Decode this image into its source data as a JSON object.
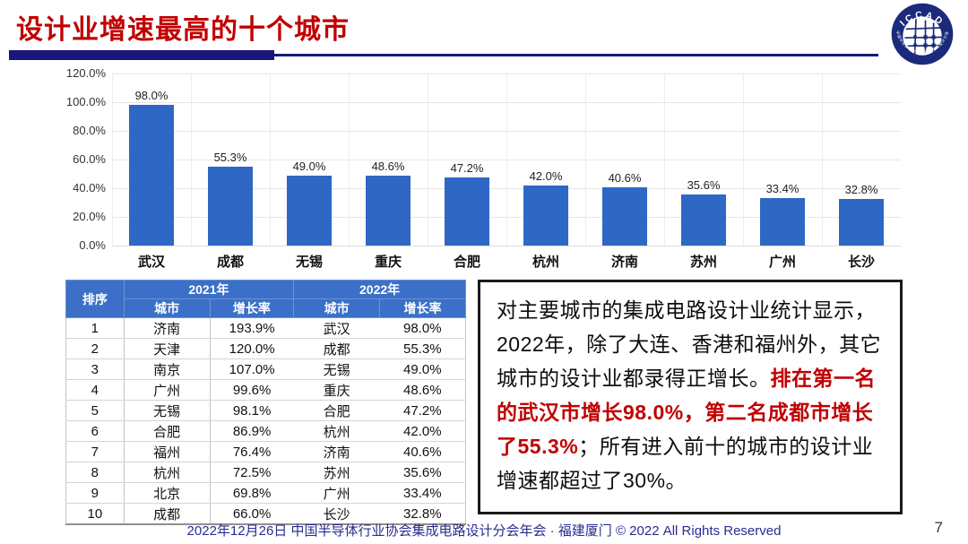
{
  "colors": {
    "title_red": "#c00000",
    "rule_navy": "#181878",
    "bar_blue": "#2f67c5",
    "table_header_blue": "#3c70c8",
    "emphasis_red": "#c00000",
    "footer_navy": "#2a2a92"
  },
  "header": {
    "title": "设计业增速最高的十个城市",
    "logo": {
      "top_text": "ICCAD",
      "ring_text": "中国半导体行业协会集成电路设计分会"
    }
  },
  "chart_data": {
    "type": "bar",
    "title": "",
    "xlabel": "",
    "ylabel": "",
    "categories": [
      "武汉",
      "成都",
      "无锡",
      "重庆",
      "合肥",
      "杭州",
      "济南",
      "苏州",
      "广州",
      "长沙"
    ],
    "values": [
      98.0,
      55.3,
      49.0,
      48.6,
      47.2,
      42.0,
      40.6,
      35.6,
      33.4,
      32.8
    ],
    "value_labels": [
      "98.0%",
      "55.3%",
      "49.0%",
      "48.6%",
      "47.2%",
      "42.0%",
      "40.6%",
      "35.6%",
      "33.4%",
      "32.8%"
    ],
    "ylim": [
      0,
      120
    ],
    "ytick_step": 20,
    "yticks": [
      "0.0%",
      "20.0%",
      "40.0%",
      "60.0%",
      "80.0%",
      "100.0%",
      "120.0%"
    ],
    "grid": true,
    "legend": false,
    "bar_color": "#2f67c5"
  },
  "table": {
    "rank_header": "排序",
    "year_headers": [
      "2021年",
      "2022年"
    ],
    "sub_headers": [
      "城市",
      "增长率",
      "城市",
      "增长率"
    ],
    "rows": [
      [
        "1",
        "济南",
        "193.9%",
        "武汉",
        "98.0%"
      ],
      [
        "2",
        "天津",
        "120.0%",
        "成都",
        "55.3%"
      ],
      [
        "3",
        "南京",
        "107.0%",
        "无锡",
        "49.0%"
      ],
      [
        "4",
        "广州",
        "99.6%",
        "重庆",
        "48.6%"
      ],
      [
        "5",
        "无锡",
        "98.1%",
        "合肥",
        "47.2%"
      ],
      [
        "6",
        "合肥",
        "86.9%",
        "杭州",
        "42.0%"
      ],
      [
        "7",
        "福州",
        "76.4%",
        "济南",
        "40.6%"
      ],
      [
        "8",
        "杭州",
        "72.5%",
        "苏州",
        "35.6%"
      ],
      [
        "9",
        "北京",
        "69.8%",
        "广州",
        "33.4%"
      ],
      [
        "10",
        "成都",
        "66.0%",
        "长沙",
        "32.8%"
      ]
    ]
  },
  "note": {
    "segments": [
      {
        "text": "对主要城市的集成电路设计业统计显示，2022年，除了大连、香港和福州外，其它城市的设计业都录得正增长。",
        "style": "normal"
      },
      {
        "text": "排在第一名的武汉市增长98.0%，第二名成都市增长了55.3%",
        "style": "red-bold"
      },
      {
        "text": "；所有进入前十的城市的设计业增速都超过了30%。",
        "style": "normal"
      }
    ]
  },
  "footer": {
    "text": "2022年12月26日 中国半导体行业协会集成电路设计分会年会 · 福建厦门 © 2022 All Rights Reserved",
    "page_number": "7"
  }
}
